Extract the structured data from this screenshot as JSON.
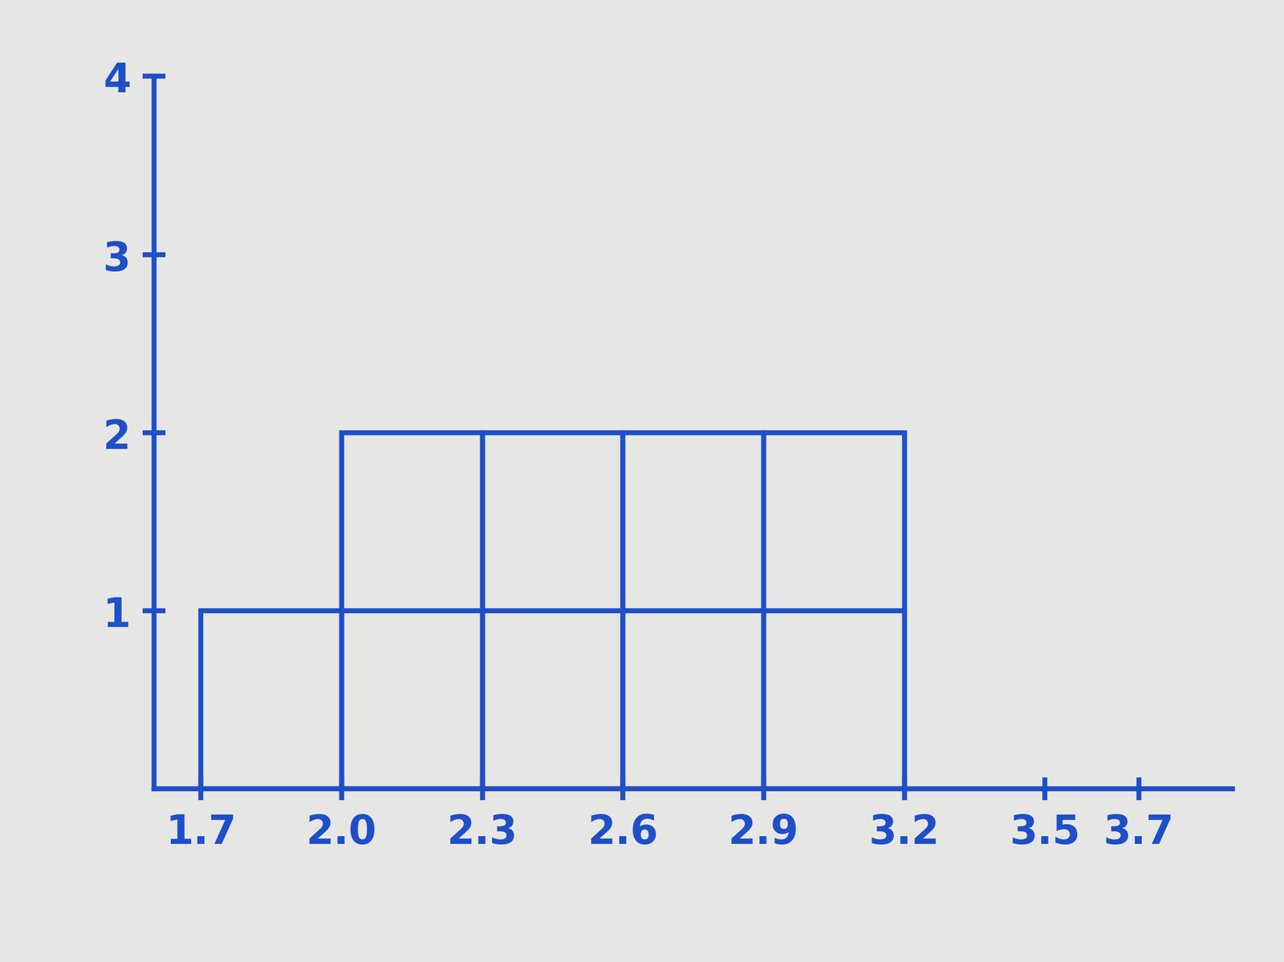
{
  "chart_data": {
    "type": "histogram",
    "bins": [
      1.7,
      2.0,
      2.3,
      2.6,
      2.9,
      3.2
    ],
    "counts": [
      1,
      2,
      2,
      2,
      2
    ],
    "color": "#1f4fc8",
    "xlim": [
      1.6,
      3.9
    ],
    "xticks": [
      1.7,
      {
        "value": 2.0,
        "label": "2.0"
      },
      2.3,
      2.6,
      2.9,
      3.2,
      3.5,
      3.7
    ],
    "ylim": [
      0,
      4
    ],
    "yticks": [
      1,
      2,
      3,
      4
    ],
    "grid": false
  }
}
